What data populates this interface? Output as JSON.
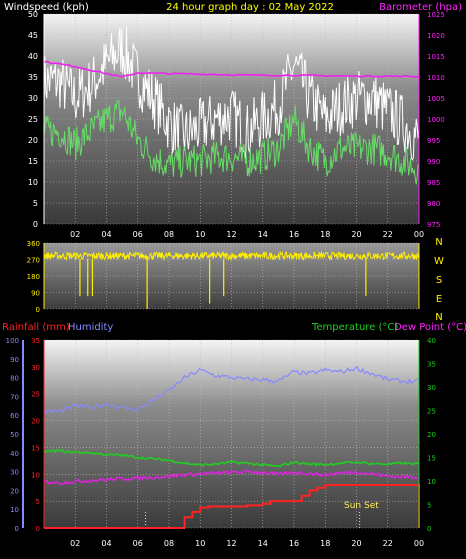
{
  "header": {
    "left_title": "Windspeed (kph)",
    "center_title": "24 hour graph day : 02 May 2022",
    "right_title": "Barometer (hpa)"
  },
  "lower_header": {
    "rainfall_label": "Rainfall (mm)",
    "humidity_label": "Humidity",
    "temperature_label": "Temperature (°C)",
    "dewpoint_label": "Dew Point (°C)"
  },
  "direction_letters": [
    "N",
    "W",
    "S",
    "E",
    "N"
  ],
  "sunset_label": "Sun Set",
  "colors": {
    "windspeed": "#ffffff",
    "gust": "#e8e8e8",
    "avg_wind": "#66dd66",
    "barometer": "#ee22ee",
    "direction": "#ffee00",
    "rainfall": "#ff2222",
    "humidity": "#8888ff",
    "temperature": "#22cc22",
    "dewpoint": "#dd22dd",
    "sunlight": "#ffee55"
  },
  "chart_data": [
    {
      "type": "line",
      "title": "24 hour graph day : 02 May 2022",
      "x_ticks": [
        "02",
        "04",
        "06",
        "08",
        "10",
        "12",
        "14",
        "16",
        "18",
        "20",
        "22",
        "00"
      ],
      "xlim_hours": [
        0,
        24
      ],
      "ylabel_left": "Windspeed (kph)",
      "ylim_left": [
        0,
        50
      ],
      "yticks_left": [
        0,
        5,
        10,
        15,
        20,
        25,
        30,
        35,
        40,
        45,
        50
      ],
      "ylabel_right": "Barometer (hpa)",
      "ylim_right": [
        975,
        1025
      ],
      "yticks_right": [
        975,
        980,
        985,
        990,
        995,
        1000,
        1005,
        1010,
        1015,
        1020,
        1025
      ],
      "series": [
        {
          "name": "Windspeed (kph)",
          "axis": "left",
          "x": [
            0,
            1,
            2,
            3,
            4,
            5,
            6,
            7,
            8,
            9,
            10,
            11,
            12,
            13,
            14,
            15,
            16,
            17,
            18,
            19,
            20,
            21,
            22,
            23,
            24
          ],
          "values": [
            34,
            34,
            30,
            33,
            38,
            42,
            35,
            30,
            24,
            21,
            23,
            25,
            26,
            22,
            25,
            28,
            38,
            30,
            25,
            28,
            30,
            30,
            27,
            24,
            20
          ]
        },
        {
          "name": "Avg wind",
          "axis": "left",
          "x": [
            0,
            1,
            2,
            3,
            4,
            5,
            6,
            7,
            8,
            9,
            10,
            11,
            12,
            13,
            14,
            15,
            16,
            17,
            18,
            19,
            20,
            21,
            22,
            23,
            24
          ],
          "values": [
            22,
            22,
            19,
            22,
            25,
            27,
            20,
            16,
            14,
            15,
            15,
            16,
            16,
            15,
            16,
            18,
            25,
            18,
            15,
            18,
            18,
            18,
            17,
            15,
            13
          ]
        },
        {
          "name": "Barometer (hpa)",
          "axis": "right",
          "x": [
            0,
            2,
            4,
            5,
            6,
            8,
            10,
            12,
            14,
            16,
            18,
            20,
            22,
            24
          ],
          "values": [
            1013.7,
            1012.5,
            1010.8,
            1010.0,
            1011.0,
            1010.8,
            1010.7,
            1010.5,
            1010.4,
            1010.4,
            1010.3,
            1010.2,
            1010.2,
            1010.1
          ]
        }
      ]
    },
    {
      "type": "scatter",
      "title": "",
      "x_ticks": [],
      "xlim_hours": [
        0,
        24
      ],
      "ylim": [
        0,
        360
      ],
      "yticks": [
        0,
        90,
        180,
        270,
        360
      ],
      "series": [
        {
          "name": "Wind direction",
          "base": 290,
          "x": [
            2.3,
            2.8,
            3.1,
            6.6,
            10.6,
            11.5,
            20.6
          ],
          "dips": [
            90,
            90,
            90,
            20,
            50,
            90,
            90
          ]
        }
      ]
    },
    {
      "type": "line",
      "title": "",
      "x_ticks": [
        "02",
        "04",
        "06",
        "08",
        "10",
        "12",
        "14",
        "16",
        "18",
        "20",
        "22",
        "00"
      ],
      "xlim_hours": [
        0,
        24
      ],
      "ylabel_left": "Rainfall (mm)",
      "ylim_rain": [
        0,
        35
      ],
      "yticks_rain": [
        0,
        5,
        10,
        15,
        20,
        25,
        30,
        35
      ],
      "ylabel_humidity": "Humidity",
      "ylim_humidity": [
        0,
        100
      ],
      "yticks_humidity": [
        0,
        10,
        20,
        30,
        40,
        50,
        60,
        70,
        80,
        90,
        100
      ],
      "ylabel_right": "Temperature (°C)",
      "ylim_right": [
        0,
        40
      ],
      "yticks_right": [
        0,
        5,
        10,
        15,
        20,
        25,
        30,
        35,
        40
      ],
      "sunset_hour": 20.2,
      "marker_hours": [
        6.5,
        20.2
      ],
      "series": [
        {
          "name": "Rainfall (mm)",
          "axis": "rain",
          "x": [
            0,
            8.0,
            8.5,
            9.0,
            9.5,
            10.0,
            10.5,
            11,
            12,
            13,
            14,
            14.5,
            15,
            16,
            16.5,
            17,
            17.5,
            18,
            20,
            22,
            23.9,
            24
          ],
          "values": [
            0,
            0,
            0,
            2,
            3,
            3.8,
            4,
            4,
            4,
            4.2,
            4.5,
            5,
            5,
            5,
            6,
            7,
            7.5,
            8,
            8,
            8,
            8,
            0
          ]
        },
        {
          "name": "Humidity",
          "axis": "humidity",
          "x": [
            0,
            1,
            2,
            3,
            4,
            5,
            6,
            7,
            8,
            9,
            10,
            11,
            12,
            13,
            14,
            15,
            16,
            17,
            18,
            19,
            20,
            21,
            22,
            23,
            24
          ],
          "values": [
            62,
            62,
            65,
            64,
            66,
            64,
            63,
            68,
            73,
            80,
            84,
            81,
            80,
            79,
            79,
            78,
            83,
            82,
            84,
            83,
            85,
            82,
            79,
            78,
            78
          ]
        },
        {
          "name": "Temperature (°C)",
          "axis": "right",
          "x": [
            0,
            1,
            2,
            3,
            4,
            5,
            6,
            7,
            8,
            9,
            10,
            11,
            12,
            13,
            14,
            15,
            16,
            17,
            18,
            19,
            20,
            21,
            22,
            23,
            24
          ],
          "values": [
            16.3,
            16.4,
            16.1,
            16.0,
            15.6,
            15.5,
            15.0,
            14.7,
            14.4,
            13.8,
            13.4,
            13.6,
            14.0,
            13.8,
            13.4,
            13.1,
            14.0,
            13.6,
            13.5,
            13.8,
            14.0,
            13.7,
            13.6,
            13.8,
            13.6
          ]
        },
        {
          "name": "Dew Point (°C)",
          "axis": "right",
          "x": [
            0,
            1,
            2,
            3,
            4,
            5,
            6,
            7,
            8,
            9,
            10,
            11,
            12,
            13,
            14,
            15,
            16,
            17,
            18,
            19,
            20,
            21,
            22,
            23,
            24
          ],
          "values": [
            9.8,
            9.6,
            9.9,
            10.1,
            10.3,
            10.5,
            10.6,
            10.8,
            11.0,
            11.3,
            11.5,
            11.7,
            11.8,
            12.0,
            11.8,
            11.4,
            11.8,
            11.6,
            11.3,
            11.7,
            11.9,
            11.5,
            11.0,
            10.9,
            10.8
          ]
        }
      ]
    }
  ]
}
